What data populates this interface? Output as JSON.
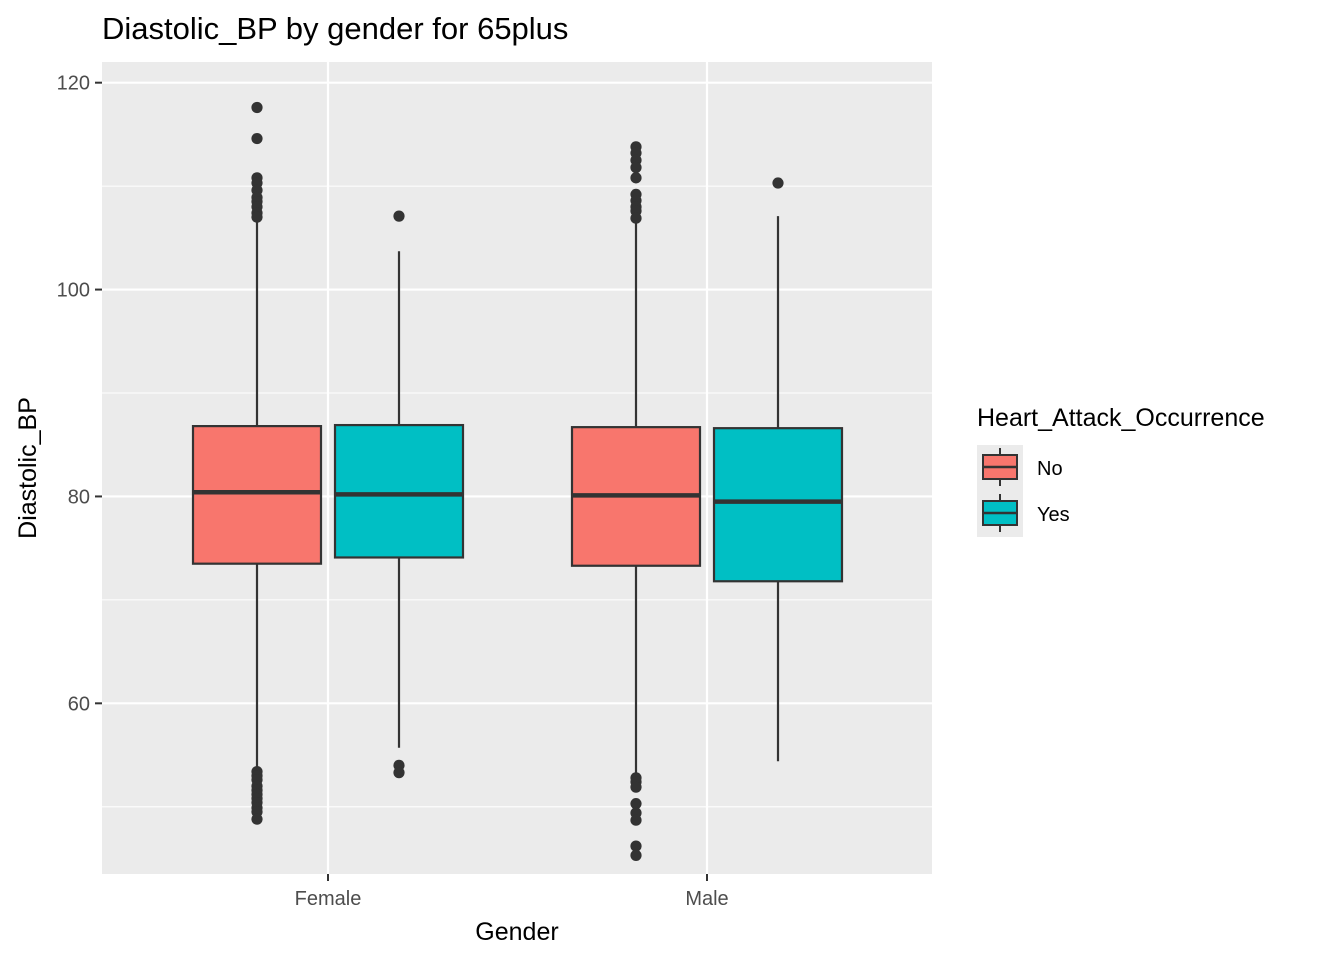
{
  "chart_data": {
    "type": "box",
    "title": "Diastolic_BP by gender for 65plus",
    "xlabel": "Gender",
    "ylabel": "Diastolic_BP",
    "categories": [
      "Female",
      "Male"
    ],
    "ylim": [
      43.5,
      122
    ],
    "yticks": [
      60,
      80,
      100,
      120
    ],
    "grid": true,
    "legend": {
      "title": "Heart_Attack_Occurrence",
      "position": "right",
      "entries": [
        "No",
        "Yes"
      ]
    },
    "series": [
      {
        "name": "No",
        "color": "#F8766D",
        "boxes": [
          {
            "category": "Female",
            "lower_whisker": 53.6,
            "q1": 73.5,
            "median": 80.4,
            "q3": 86.8,
            "upper_whisker": 106.8,
            "outliers": [
              117.6,
              114.6,
              110.8,
              110.3,
              109.6,
              108.9,
              108.5,
              108.0,
              107.4,
              107.0,
              53.4,
              53.0,
              52.6,
              52.0,
              51.6,
              51.2,
              50.8,
              50.4,
              49.9,
              49.5,
              48.8
            ]
          },
          {
            "category": "Male",
            "lower_whisker": 53.0,
            "q1": 73.3,
            "median": 80.1,
            "q3": 86.7,
            "upper_whisker": 106.8,
            "outliers": [
              113.8,
              113.2,
              112.5,
              111.8,
              110.8,
              109.2,
              108.6,
              108.0,
              107.6,
              106.9,
              52.8,
              52.4,
              51.9,
              50.3,
              49.4,
              48.7,
              46.2,
              45.3
            ]
          }
        ]
      },
      {
        "name": "Yes",
        "color": "#00BFC4",
        "boxes": [
          {
            "category": "Female",
            "lower_whisker": 55.7,
            "q1": 74.1,
            "median": 80.2,
            "q3": 86.9,
            "upper_whisker": 103.7,
            "outliers": [
              107.1,
              54.0,
              53.3
            ]
          },
          {
            "category": "Male",
            "lower_whisker": 54.4,
            "q1": 71.8,
            "median": 79.5,
            "q3": 86.6,
            "upper_whisker": 107.1,
            "outliers": [
              110.3
            ]
          }
        ]
      }
    ]
  }
}
